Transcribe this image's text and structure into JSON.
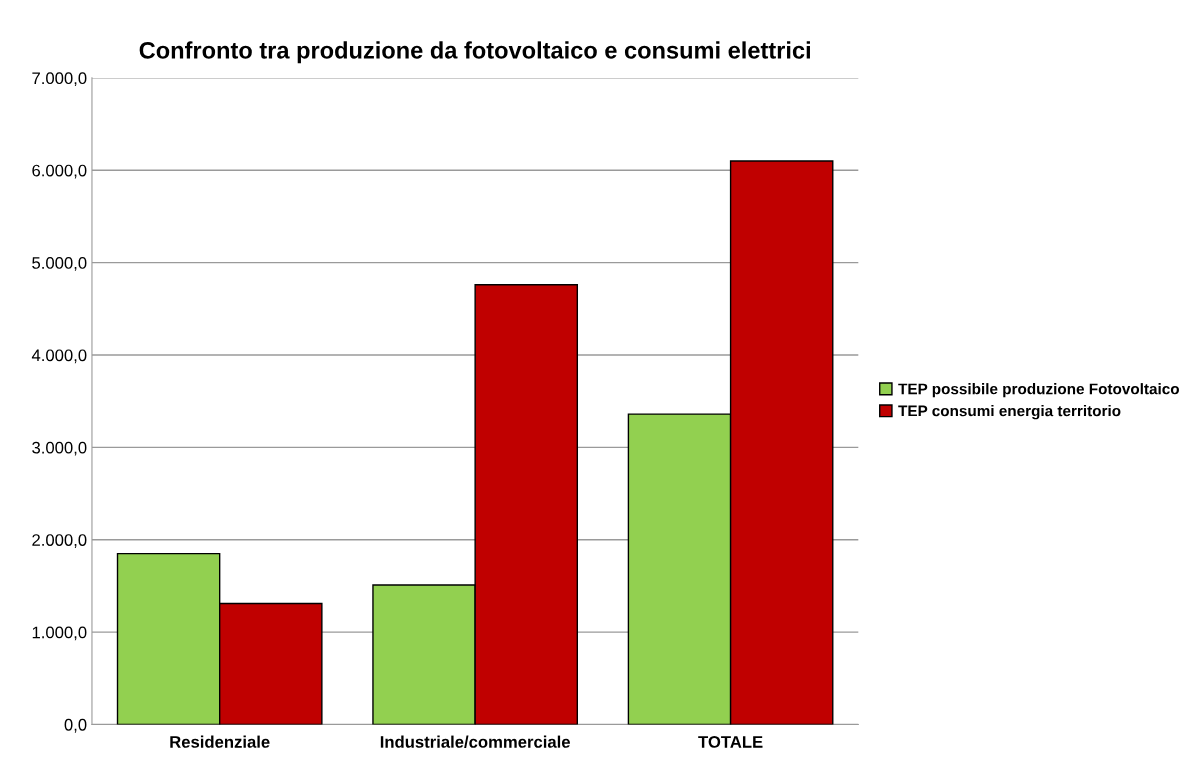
{
  "chart_data": {
    "type": "bar",
    "title": "Confronto tra produzione da fotovoltaico e consumi elettrici",
    "categories": [
      "Residenziale",
      "Industriale/commerciale",
      "TOTALE"
    ],
    "series": [
      {
        "name": "TEP possibile produzione Fotovoltaico",
        "color": "#92d050",
        "values": [
          1850,
          1510,
          3360
        ]
      },
      {
        "name": "TEP consumi energia territorio",
        "color": "#c00000",
        "values": [
          1310,
          4760,
          6100
        ]
      }
    ],
    "ylim": [
      0,
      7000
    ],
    "yticks": [
      {
        "value": 0,
        "label": "0,0"
      },
      {
        "value": 1000,
        "label": "1.000,0"
      },
      {
        "value": 2000,
        "label": "2.000,0"
      },
      {
        "value": 3000,
        "label": "3.000,0"
      },
      {
        "value": 4000,
        "label": "4.000,0"
      },
      {
        "value": 5000,
        "label": "5.000,0"
      },
      {
        "value": 6000,
        "label": "6.000,0"
      },
      {
        "value": 7000,
        "label": "7.000,0"
      }
    ],
    "grid": "y",
    "legend": "right"
  }
}
